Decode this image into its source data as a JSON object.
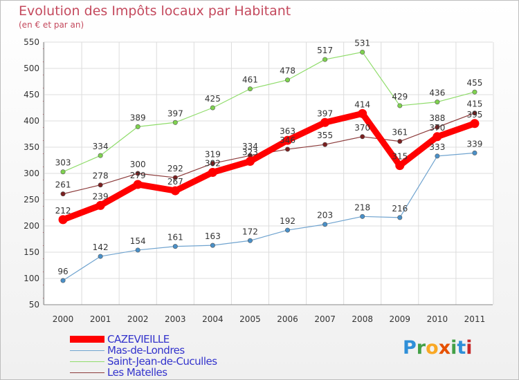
{
  "header": {
    "title": "Evolution des Impôts locaux par Habitant",
    "subtitle": "(en € et par an)"
  },
  "logo": {
    "text": "Proxiti",
    "letters": [
      {
        "ch": "P",
        "color": "#2f8fd8"
      },
      {
        "ch": "r",
        "color": "#43a047"
      },
      {
        "ch": "o",
        "color": "#f9a825"
      },
      {
        "ch": "x",
        "color": "#e65100"
      },
      {
        "ch": "i",
        "color": "#43a047"
      },
      {
        "ch": "t",
        "color": "#2f8fd8"
      },
      {
        "ch": "i",
        "color": "#c62828"
      }
    ]
  },
  "chart_data": {
    "type": "line",
    "title": "Evolution des Impôts locaux par Habitant",
    "subtitle": "(en € et par an)",
    "x": [
      "2000",
      "2001",
      "2002",
      "2003",
      "2004",
      "2005",
      "2006",
      "2007",
      "2008",
      "2009",
      "2010",
      "2011"
    ],
    "ylim": [
      50,
      550
    ],
    "yticks": [
      "50",
      "100",
      "150",
      "200",
      "250",
      "300",
      "350",
      "400",
      "450",
      "500",
      "550"
    ],
    "grid": true,
    "legend_position": "bottom-left",
    "series": [
      {
        "name": "CAZEVIEILLE",
        "color": "#ff0000",
        "values": [
          212,
          239,
          279,
          267,
          302,
          323,
          363,
          397,
          414,
          315,
          370,
          395
        ],
        "labels": [
          "212",
          "239",
          "279",
          "267",
          "302",
          "323",
          "363",
          "397",
          "414",
          "315",
          "370",
          "395"
        ]
      },
      {
        "name": "Mas-de-Londres",
        "color": "#6fa3cf",
        "values": [
          96,
          142,
          154,
          161,
          163,
          172,
          192,
          203,
          218,
          216,
          333,
          339
        ],
        "labels": [
          "96",
          "142",
          "154",
          "161",
          "163",
          "172",
          "192",
          "203",
          "218",
          "216",
          "333",
          "339"
        ]
      },
      {
        "name": "Saint-Jean-de-Cuculles",
        "color": "#8fdc6a",
        "values": [
          303,
          334,
          389,
          397,
          425,
          461,
          478,
          517,
          531,
          429,
          436,
          455
        ],
        "labels": [
          "303",
          "334",
          "389",
          "397",
          "425",
          "461",
          "478",
          "517",
          "531",
          "429",
          "436",
          "455"
        ]
      },
      {
        "name": "Les Matelles",
        "color": "#8b3a3a",
        "values": [
          261,
          278,
          300,
          292,
          319,
          334,
          346,
          355,
          370,
          361,
          388,
          415
        ],
        "labels": [
          "261",
          "278",
          "300",
          "292",
          "319",
          "334",
          "346",
          "355",
          "370",
          "361",
          "388",
          "415"
        ]
      }
    ]
  }
}
